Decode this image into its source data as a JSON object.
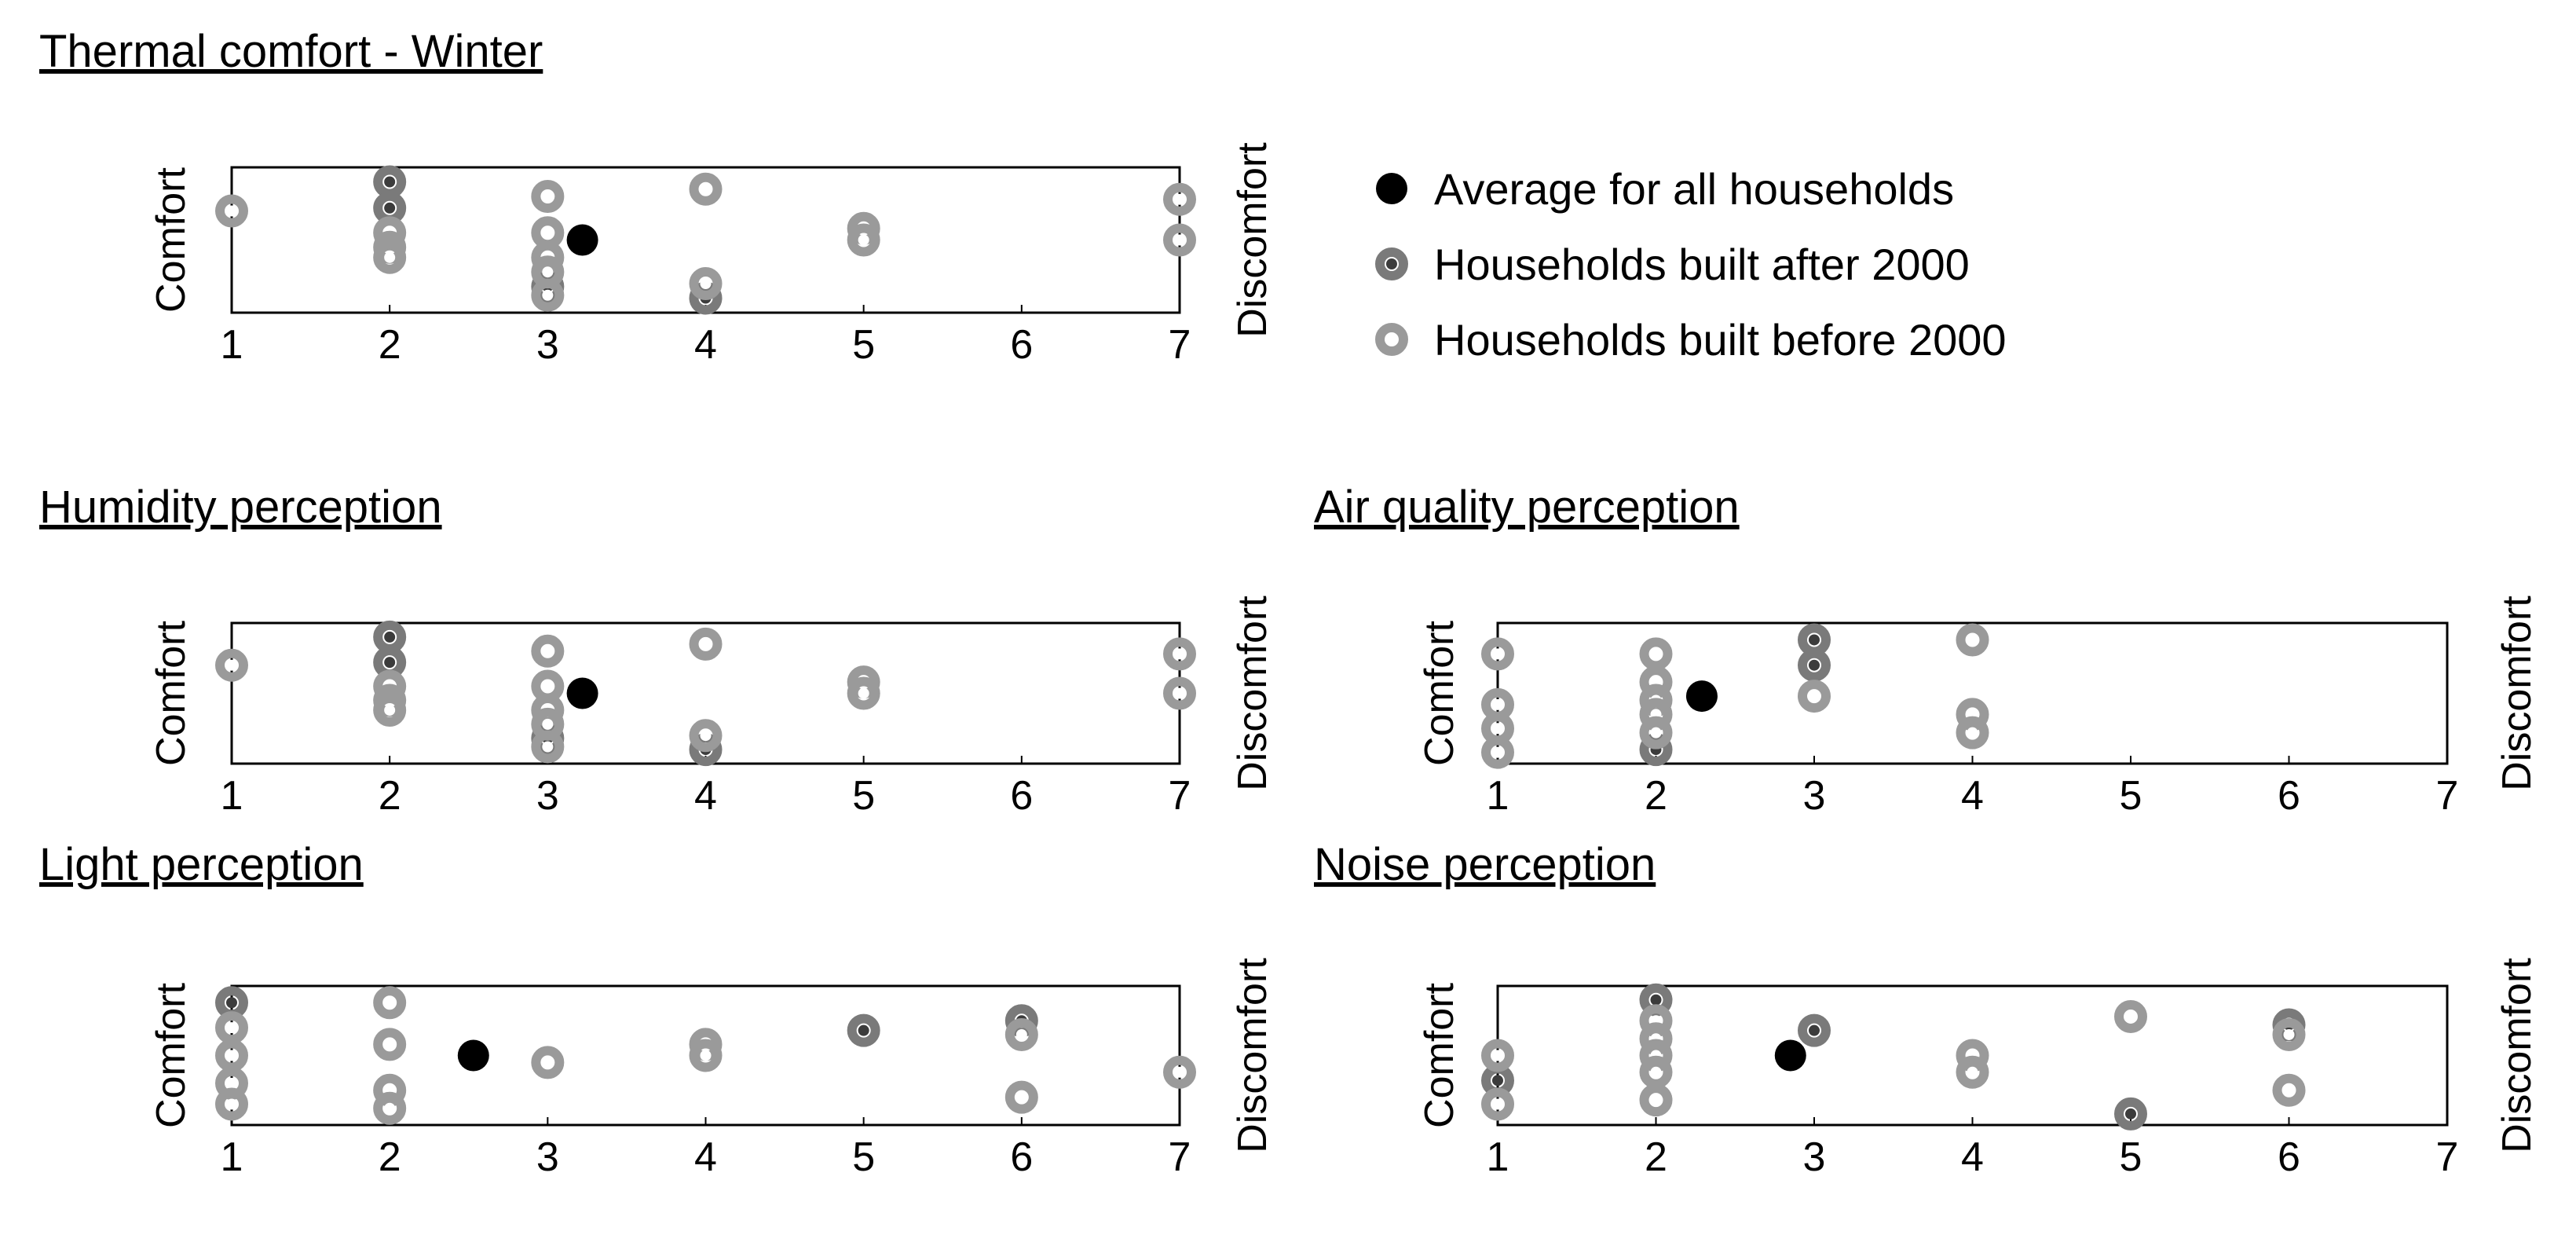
{
  "colors": {
    "average": "#000000",
    "after_2000_ring": "#7a7a7a",
    "after_2000_center": "#3c3c3c",
    "before_2000_ring": "#9a9a9a",
    "before_2000_center": "#ffffff",
    "axis": "#000000"
  },
  "legend": {
    "items": [
      {
        "label": "Average for all households",
        "marker": "average"
      },
      {
        "label": "Households built after 2000",
        "marker": "after"
      },
      {
        "label": "Households built before 2000",
        "marker": "before"
      }
    ]
  },
  "chart_data": [
    {
      "type": "scatter",
      "title": "Thermal comfort - Winter",
      "left_label": "Comfort",
      "right_label": "Discomfort",
      "xlim": [
        1,
        7
      ],
      "ylim": [
        0,
        1
      ],
      "x_ticks": [
        "1",
        "2",
        "3",
        "4",
        "5",
        "6",
        "7"
      ],
      "series": [
        {
          "name": "Households built after 2000",
          "points": [
            [
              2,
              0.9
            ],
            [
              2,
              0.72
            ],
            [
              3,
              0.18
            ],
            [
              4,
              0.1
            ]
          ]
        },
        {
          "name": "Households built before 2000",
          "points": [
            [
              1,
              0.7
            ],
            [
              2,
              0.55
            ],
            [
              2,
              0.45
            ],
            [
              2,
              0.38
            ],
            [
              3,
              0.8
            ],
            [
              3,
              0.55
            ],
            [
              3,
              0.38
            ],
            [
              3,
              0.28
            ],
            [
              3,
              0.12
            ],
            [
              4,
              0.85
            ],
            [
              4,
              0.2
            ],
            [
              5,
              0.58
            ],
            [
              5,
              0.5
            ],
            [
              7,
              0.78
            ],
            [
              7,
              0.5
            ]
          ]
        },
        {
          "name": "Average for all households",
          "points": [
            [
              3.22,
              0.5
            ]
          ]
        }
      ]
    },
    {
      "type": "scatter",
      "title": "Humidity perception",
      "left_label": "Comfort",
      "right_label": "Discomfort",
      "xlim": [
        1,
        7
      ],
      "ylim": [
        0,
        1
      ],
      "x_ticks": [
        "1",
        "2",
        "3",
        "4",
        "5",
        "6",
        "7"
      ],
      "series": [
        {
          "name": "Households built after 2000",
          "points": [
            [
              2,
              0.9
            ],
            [
              2,
              0.72
            ],
            [
              3,
              0.18
            ],
            [
              4,
              0.1
            ]
          ]
        },
        {
          "name": "Households built before 2000",
          "points": [
            [
              1,
              0.7
            ],
            [
              2,
              0.55
            ],
            [
              2,
              0.45
            ],
            [
              2,
              0.38
            ],
            [
              3,
              0.8
            ],
            [
              3,
              0.55
            ],
            [
              3,
              0.38
            ],
            [
              3,
              0.28
            ],
            [
              3,
              0.12
            ],
            [
              4,
              0.85
            ],
            [
              4,
              0.2
            ],
            [
              5,
              0.58
            ],
            [
              5,
              0.5
            ],
            [
              7,
              0.78
            ],
            [
              7,
              0.5
            ]
          ]
        },
        {
          "name": "Average for all households",
          "points": [
            [
              3.22,
              0.5
            ]
          ]
        }
      ]
    },
    {
      "type": "scatter",
      "title": "Air quality perception",
      "left_label": "Comfort",
      "right_label": "Discomfort",
      "xlim": [
        1,
        7
      ],
      "ylim": [
        0,
        1
      ],
      "x_ticks": [
        "1",
        "2",
        "3",
        "4",
        "5",
        "6",
        "7"
      ],
      "series": [
        {
          "name": "Households built after 2000",
          "points": [
            [
              2,
              0.1
            ],
            [
              3,
              0.88
            ],
            [
              3,
              0.7
            ]
          ]
        },
        {
          "name": "Households built before 2000",
          "points": [
            [
              1,
              0.78
            ],
            [
              1,
              0.42
            ],
            [
              1,
              0.25
            ],
            [
              1,
              0.08
            ],
            [
              2,
              0.78
            ],
            [
              2,
              0.58
            ],
            [
              2,
              0.45
            ],
            [
              2,
              0.35
            ],
            [
              2,
              0.22
            ],
            [
              3,
              0.48
            ],
            [
              4,
              0.88
            ],
            [
              4,
              0.35
            ],
            [
              4,
              0.22
            ]
          ]
        },
        {
          "name": "Average for all households",
          "points": [
            [
              2.29,
              0.48
            ]
          ]
        }
      ]
    },
    {
      "type": "scatter",
      "title": "Light perception",
      "left_label": "Comfort",
      "right_label": "Discomfort",
      "xlim": [
        1,
        7
      ],
      "ylim": [
        0,
        1
      ],
      "x_ticks": [
        "1",
        "2",
        "3",
        "4",
        "5",
        "6",
        "7"
      ],
      "series": [
        {
          "name": "Households built after 2000",
          "points": [
            [
              1,
              0.88
            ],
            [
              5,
              0.68
            ],
            [
              6,
              0.75
            ]
          ]
        },
        {
          "name": "Households built before 2000",
          "points": [
            [
              1,
              0.7
            ],
            [
              1,
              0.5
            ],
            [
              1,
              0.3
            ],
            [
              1,
              0.15
            ],
            [
              2,
              0.88
            ],
            [
              2,
              0.58
            ],
            [
              2,
              0.25
            ],
            [
              2,
              0.12
            ],
            [
              3,
              0.45
            ],
            [
              4,
              0.58
            ],
            [
              4,
              0.5
            ],
            [
              6,
              0.65
            ],
            [
              6,
              0.2
            ],
            [
              7,
              0.38
            ]
          ]
        },
        {
          "name": "Average for all households",
          "points": [
            [
              2.53,
              0.5
            ]
          ]
        }
      ]
    },
    {
      "type": "scatter",
      "title": "Noise perception",
      "left_label": "Comfort",
      "right_label": "Discomfort",
      "xlim": [
        1,
        7
      ],
      "ylim": [
        0,
        1
      ],
      "x_ticks": [
        "1",
        "2",
        "3",
        "4",
        "5",
        "6",
        "7"
      ],
      "series": [
        {
          "name": "Households built after 2000",
          "points": [
            [
              1,
              0.32
            ],
            [
              2,
              0.9
            ],
            [
              3,
              0.68
            ],
            [
              5,
              0.08
            ],
            [
              6,
              0.72
            ]
          ]
        },
        {
          "name": "Households built before 2000",
          "points": [
            [
              1,
              0.5
            ],
            [
              1,
              0.15
            ],
            [
              2,
              0.75
            ],
            [
              2,
              0.62
            ],
            [
              2,
              0.5
            ],
            [
              2,
              0.38
            ],
            [
              2,
              0.18
            ],
            [
              4,
              0.5
            ],
            [
              4,
              0.38
            ],
            [
              5,
              0.78
            ],
            [
              6,
              0.65
            ],
            [
              6,
              0.25
            ]
          ]
        },
        {
          "name": "Average for all households",
          "points": [
            [
              2.85,
              0.5
            ]
          ]
        }
      ]
    }
  ]
}
